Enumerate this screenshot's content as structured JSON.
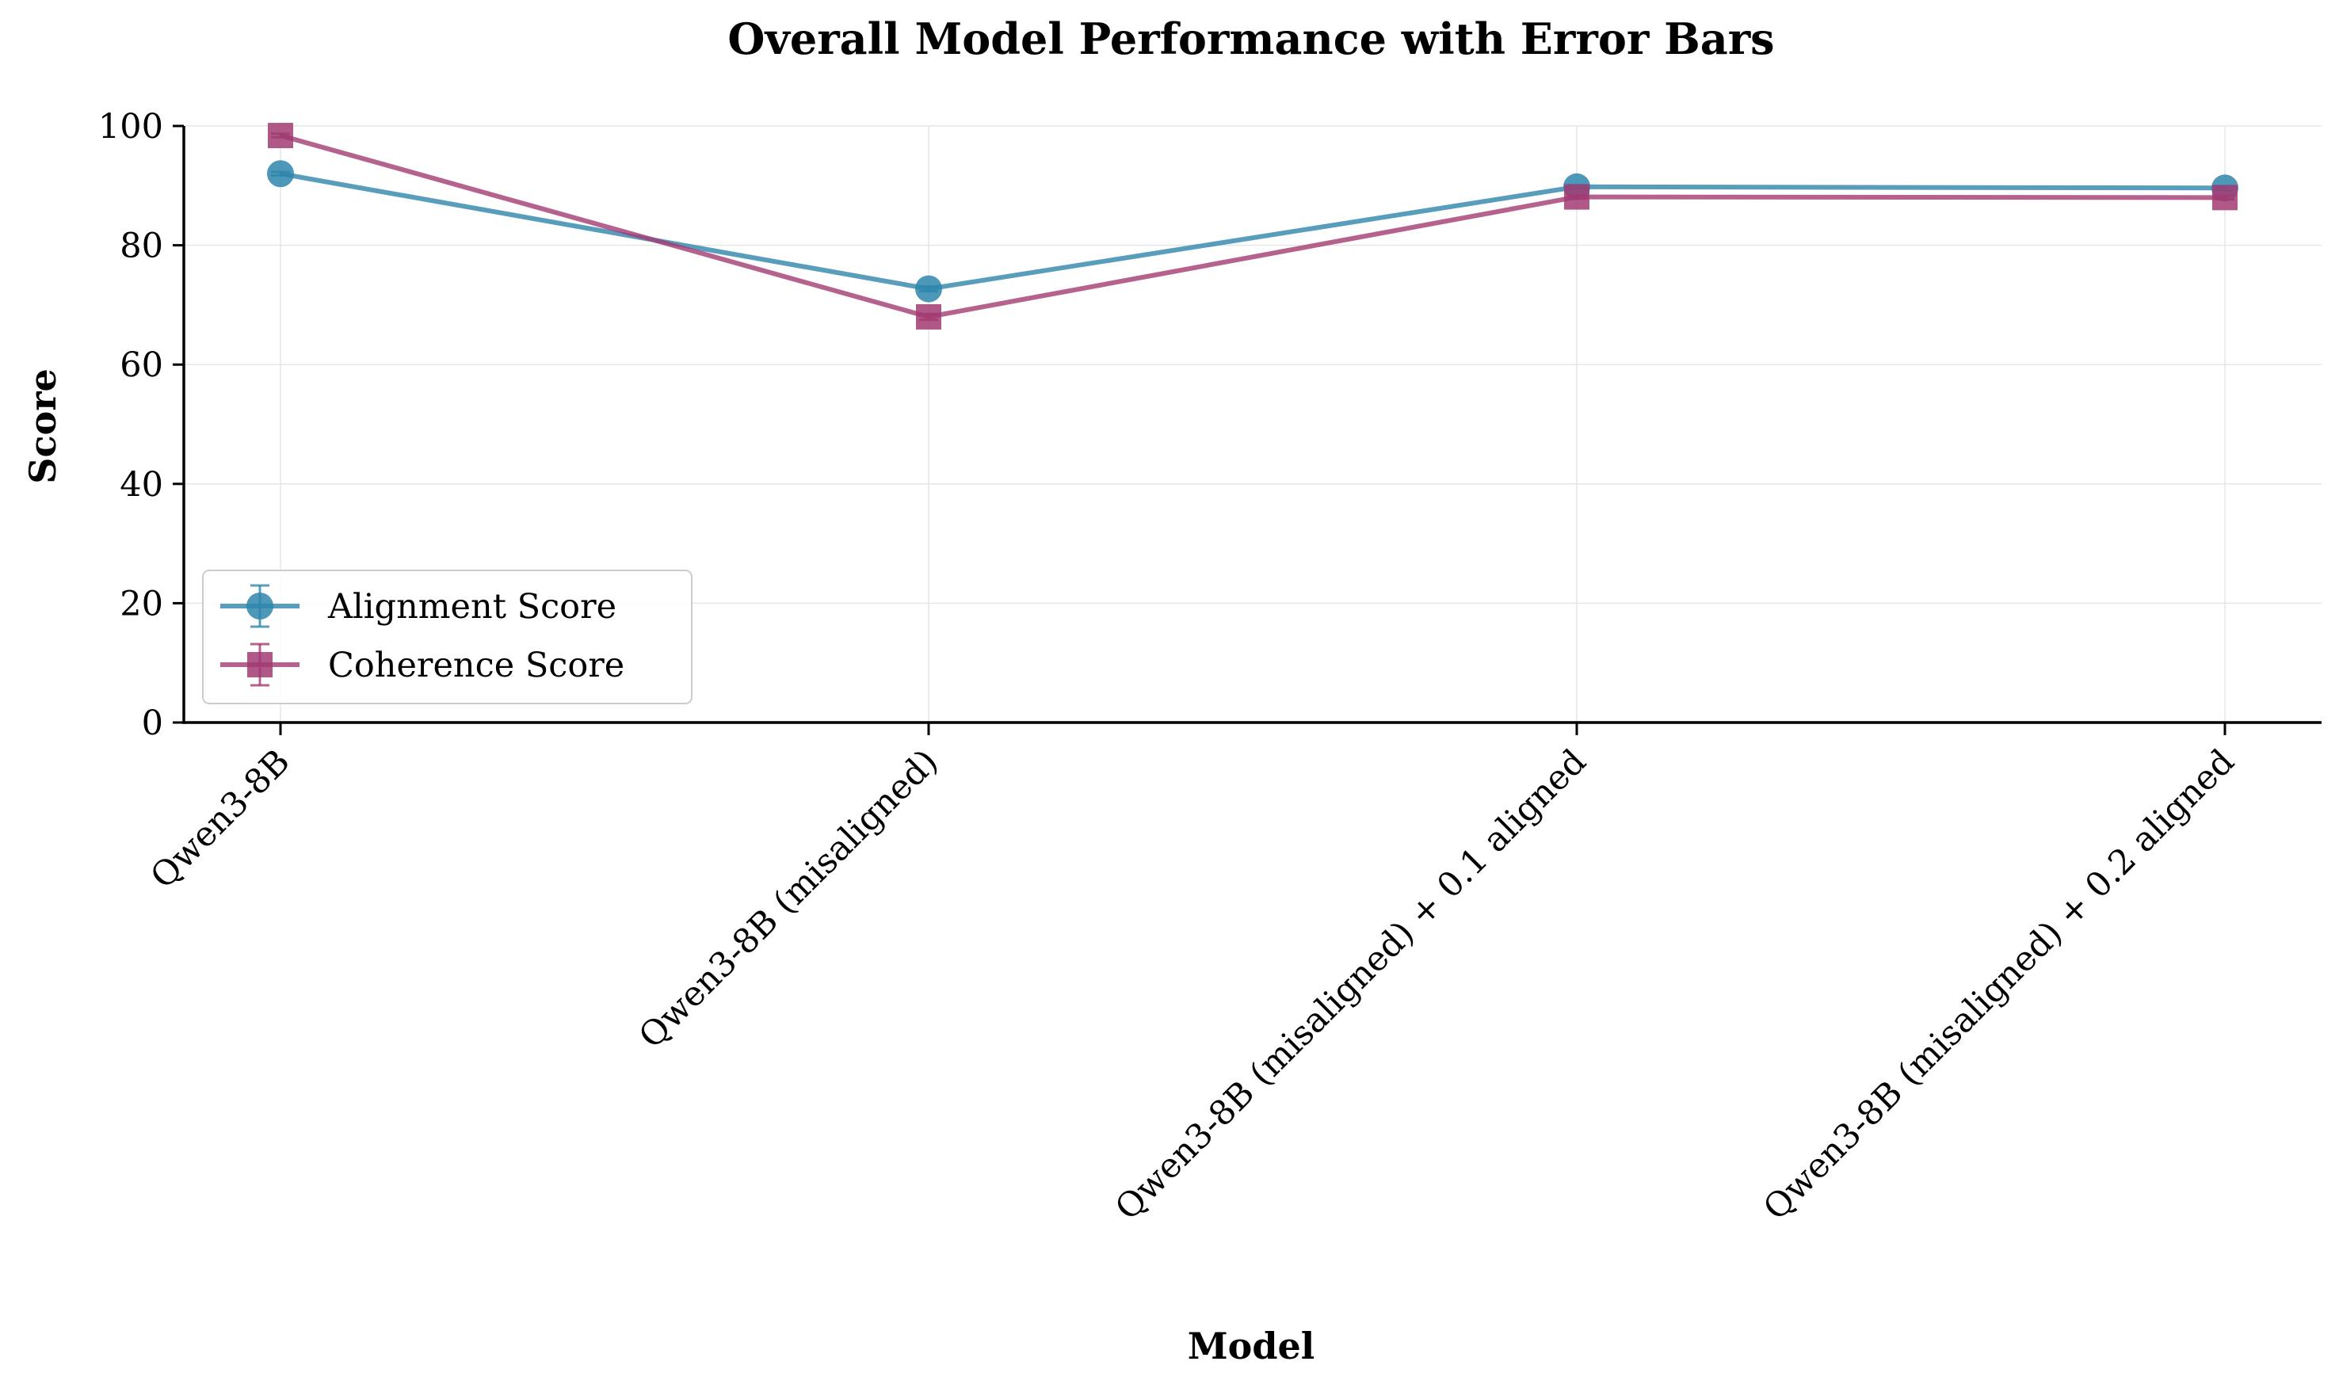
{
  "chart_data": {
    "type": "line",
    "title": "Overall Model Performance with Error Bars",
    "xlabel": "Model",
    "ylabel": "Score",
    "categories": [
      "Qwen3-8B",
      "Qwen3-8B (misaligned)",
      "Qwen3-8B (misaligned) + 0.1 aligned",
      "Qwen3-8B (misaligned) + 0.2 aligned"
    ],
    "ylim": [
      0,
      100
    ],
    "yticks": [
      0,
      20,
      40,
      60,
      80,
      100
    ],
    "grid": true,
    "legend_position": "lower-left",
    "series": [
      {
        "name": "Alignment Score",
        "values": [
          92.0,
          72.7,
          89.8,
          89.6
        ],
        "errors": [
          0.3,
          0.4,
          0.3,
          0.3
        ],
        "color": "#2e86ab",
        "marker": "circle"
      },
      {
        "name": "Coherence Score",
        "values": [
          98.4,
          68.0,
          88.1,
          88.0
        ],
        "errors": [
          0.3,
          0.5,
          0.3,
          0.3
        ],
        "color": "#a23b72",
        "marker": "square"
      }
    ]
  }
}
